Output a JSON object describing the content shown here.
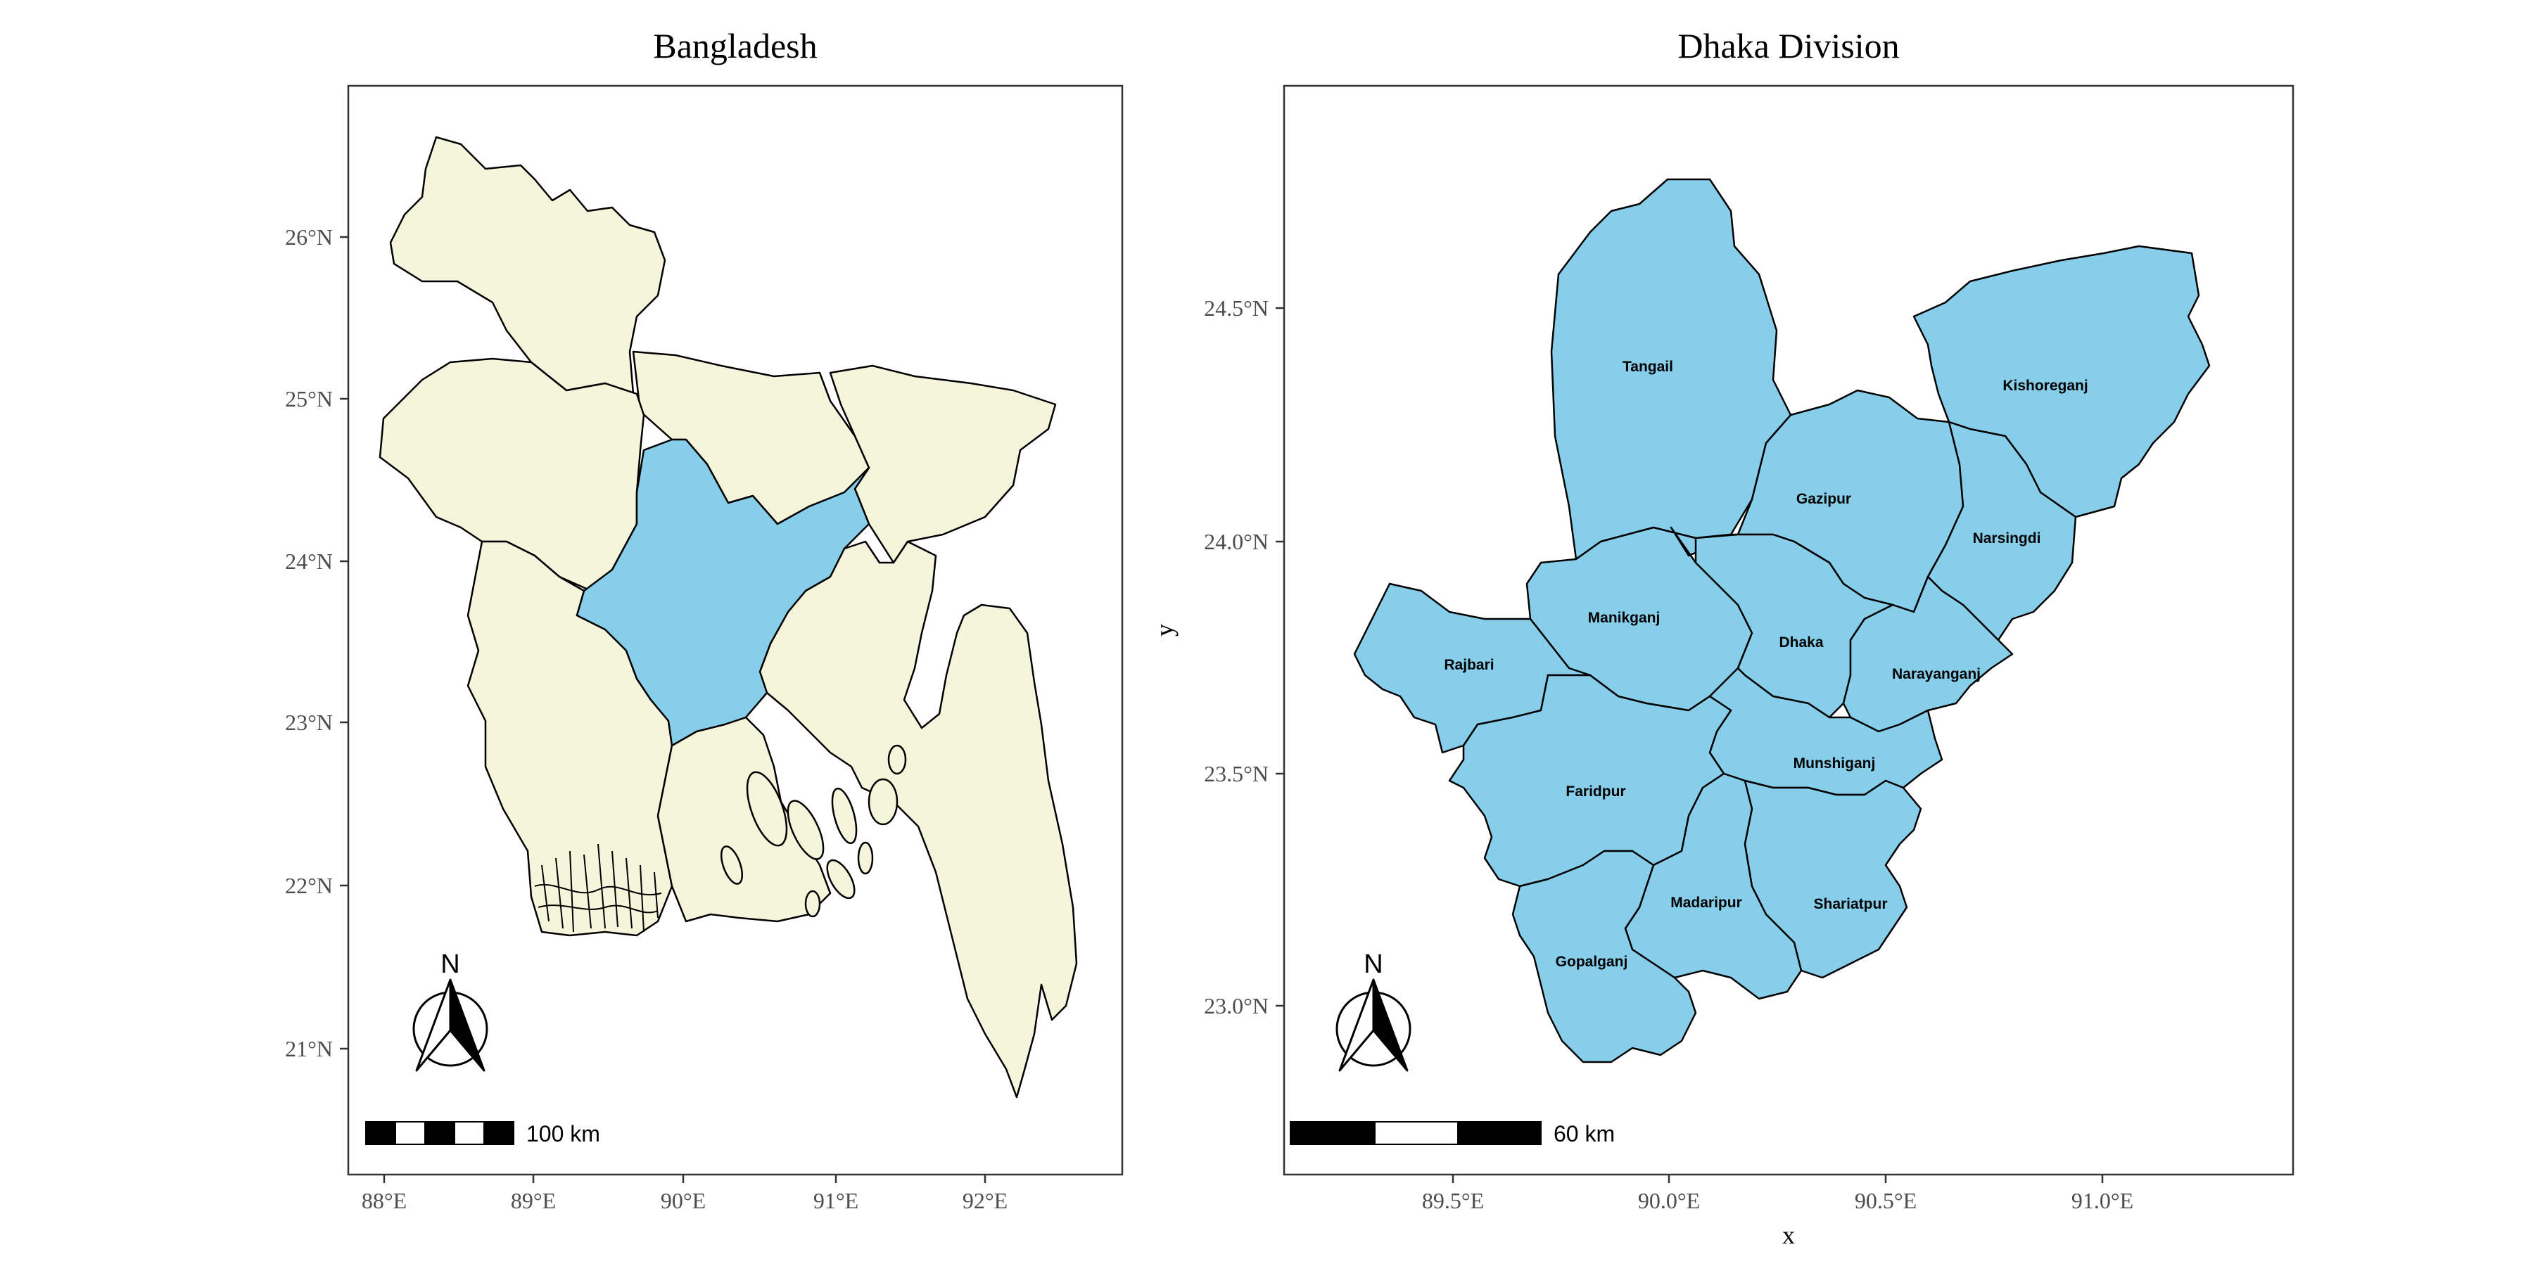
{
  "colors": {
    "land": "#f5f5dc",
    "highlight": "#87ceeb",
    "border": "#000000",
    "tick_text": "#4d4d4d"
  },
  "left_map": {
    "title": "Bangladesh",
    "x_ticks": [
      "88°E",
      "89°E",
      "90°E",
      "91°E",
      "92°E"
    ],
    "y_ticks": [
      "21°N",
      "22°N",
      "23°N",
      "24°N",
      "25°N",
      "26°N"
    ],
    "north_label": "N",
    "scale_label": "100 km",
    "highlighted_division": "Dhaka"
  },
  "right_map": {
    "title": "Dhaka Division",
    "x_ticks": [
      "89.5°E",
      "90.0°E",
      "90.5°E",
      "91.0°E"
    ],
    "y_ticks": [
      "23.0°N",
      "23.5°N",
      "24.0°N",
      "24.5°N"
    ],
    "xlabel": "x",
    "ylabel": "y",
    "north_label": "N",
    "scale_label": "60 km",
    "districts": [
      {
        "name": "Tangail"
      },
      {
        "name": "Kishoreganj"
      },
      {
        "name": "Gazipur"
      },
      {
        "name": "Narsingdi"
      },
      {
        "name": "Manikganj"
      },
      {
        "name": "Dhaka"
      },
      {
        "name": "Rajbari"
      },
      {
        "name": "Narayanganj"
      },
      {
        "name": "Munshiganj"
      },
      {
        "name": "Faridpur"
      },
      {
        "name": "Madaripur"
      },
      {
        "name": "Shariatpur"
      },
      {
        "name": "Gopalganj"
      }
    ]
  }
}
